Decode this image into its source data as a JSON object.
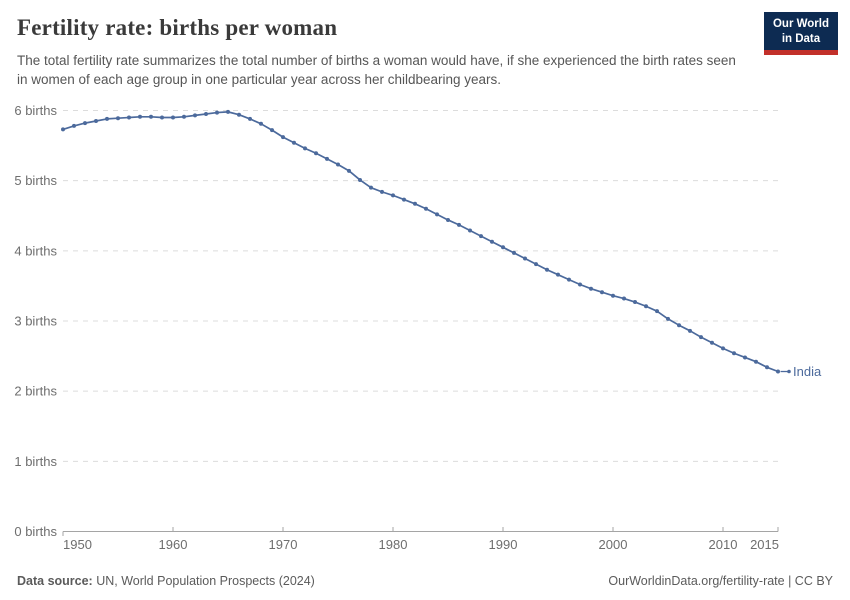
{
  "header": {
    "title": "Fertility rate: births per woman",
    "subtitle": "The total fertility rate summarizes the total number of births a woman would have, if she experienced the birth rates seen in women of each age group in one particular year across her childbearing years.",
    "logo": {
      "line1": "Our World",
      "line2": "in Data"
    }
  },
  "chart_data": {
    "type": "line",
    "title": "Fertility rate: births per woman",
    "end_label": "India",
    "xlim": [
      1950,
      2015
    ],
    "ylim": [
      0,
      6
    ],
    "grid": "horizontal-dashed",
    "legend_position": "end-of-line",
    "y_tick_labels": [
      "0 births",
      "1 births",
      "2 births",
      "3 births",
      "4 births",
      "5 births",
      "6 births"
    ],
    "x_ticks": [
      1950,
      1960,
      1970,
      1980,
      1990,
      2000,
      2010,
      2015
    ],
    "series": [
      {
        "name": "India",
        "years": [
          1950,
          1951,
          1952,
          1953,
          1954,
          1955,
          1956,
          1957,
          1958,
          1959,
          1960,
          1961,
          1962,
          1963,
          1964,
          1965,
          1966,
          1967,
          1968,
          1969,
          1970,
          1971,
          1972,
          1973,
          1974,
          1975,
          1976,
          1977,
          1978,
          1979,
          1980,
          1981,
          1982,
          1983,
          1984,
          1985,
          1986,
          1987,
          1988,
          1989,
          1990,
          1991,
          1992,
          1993,
          1994,
          1995,
          1996,
          1997,
          1998,
          1999,
          2000,
          2001,
          2002,
          2003,
          2004,
          2005,
          2006,
          2007,
          2008,
          2009,
          2010,
          2011,
          2012,
          2013,
          2014,
          2015
        ],
        "values": [
          5.73,
          5.78,
          5.82,
          5.85,
          5.88,
          5.89,
          5.9,
          5.91,
          5.91,
          5.9,
          5.9,
          5.91,
          5.93,
          5.95,
          5.97,
          5.98,
          5.94,
          5.88,
          5.81,
          5.72,
          5.62,
          5.54,
          5.46,
          5.39,
          5.31,
          5.23,
          5.14,
          5.01,
          4.9,
          4.84,
          4.79,
          4.73,
          4.67,
          4.6,
          4.52,
          4.44,
          4.37,
          4.29,
          4.21,
          4.13,
          4.05,
          3.97,
          3.89,
          3.81,
          3.73,
          3.66,
          3.59,
          3.52,
          3.46,
          3.41,
          3.36,
          3.32,
          3.27,
          3.21,
          3.14,
          3.03,
          2.94,
          2.86,
          2.77,
          2.69,
          2.61,
          2.54,
          2.48,
          2.42,
          2.34,
          2.28
        ]
      }
    ]
  },
  "footer": {
    "source_label": "Data source:",
    "source_text": "UN, World Population Prospects (2024)",
    "link_text": "OurWorldinData.org/fertility-rate | CC BY"
  },
  "theme": {
    "line_color": "#4c6a9c",
    "grid_color": "#dcdcdc",
    "axis_color": "#a5a5a5",
    "axis_label_color": "#6e6e6e",
    "title_color": "#3a3a3a",
    "subtitle_color": "#565656",
    "footer_color": "#5b5b5b",
    "logo_bg": "#0d2b52",
    "logo_red": "#c2302a",
    "logo_text": "#ffffff"
  }
}
